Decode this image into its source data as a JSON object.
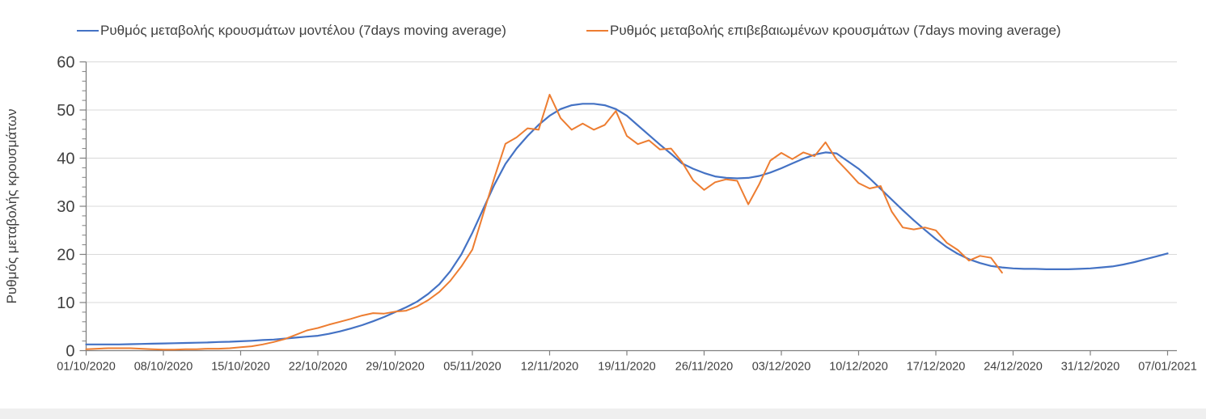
{
  "legend": {
    "series1_label": "Ρυθμός μεταβολής κρουσμάτων μοντέλου (7days moving average)",
    "series2_label": "Ρυθμός μεταβολής επιβεβαιωμένων κρουσμάτων (7days moving average)"
  },
  "y_axis": {
    "title": "Ρυθμός μεταβολής κρουσμάτων",
    "tick_values": [
      0,
      10,
      20,
      30,
      40,
      50,
      60
    ],
    "minor_tick_step": 2
  },
  "x_axis": {
    "tick_labels": [
      "01/10/2020",
      "08/10/2020",
      "15/10/2020",
      "22/10/2020",
      "29/10/2020",
      "05/11/2020",
      "12/11/2020",
      "19/11/2020",
      "26/11/2020",
      "03/12/2020",
      "10/12/2020",
      "17/12/2020",
      "24/12/2020",
      "31/12/2020",
      "07/01/2021"
    ],
    "tick_days": [
      0,
      7,
      14,
      21,
      28,
      35,
      42,
      49,
      56,
      63,
      70,
      77,
      84,
      91,
      98
    ]
  },
  "colors": {
    "model_line": "#4472C4",
    "confirmed_line": "#ED7D31",
    "gridline": "#D9D9D9",
    "axis": "#808080",
    "text": "#404040"
  },
  "chart_data": {
    "type": "line",
    "title": "",
    "ylabel": "Ρυθμός μεταβολής κρουσμάτων",
    "ylim": [
      0,
      60
    ],
    "grid": "horizontal",
    "legend_position": "top",
    "x_unit": "days since 01/10/2020 (weekly ticks)",
    "x_tick_days": [
      0,
      7,
      14,
      21,
      28,
      35,
      42,
      49,
      56,
      63,
      70,
      77,
      84,
      91,
      98
    ],
    "x_tick_labels": [
      "01/10/2020",
      "08/10/2020",
      "15/10/2020",
      "22/10/2020",
      "29/10/2020",
      "05/11/2020",
      "12/11/2020",
      "19/11/2020",
      "26/11/2020",
      "03/12/2020",
      "10/12/2020",
      "17/12/2020",
      "24/12/2020",
      "31/12/2020",
      "07/01/2021"
    ],
    "series": [
      {
        "name": "Ρυθμός μεταβολής κρουσμάτων μοντέλου (7days moving average)",
        "color": "#4472C4",
        "start_day": 0,
        "values": [
          1.3,
          1.3,
          1.3,
          1.3,
          1.35,
          1.4,
          1.45,
          1.5,
          1.55,
          1.6,
          1.65,
          1.7,
          1.8,
          1.85,
          1.95,
          2.05,
          2.2,
          2.3,
          2.5,
          2.7,
          2.9,
          3.1,
          3.5,
          4.0,
          4.6,
          5.3,
          6.1,
          7.0,
          8.0,
          9.0,
          10.2,
          11.8,
          13.8,
          16.5,
          20.0,
          24.5,
          29.5,
          34.5,
          38.8,
          42.0,
          44.6,
          46.9,
          48.8,
          50.2,
          51.0,
          51.3,
          51.3,
          51.0,
          50.2,
          48.8,
          46.8,
          44.8,
          42.8,
          40.9,
          38.9,
          37.8,
          36.9,
          36.2,
          35.9,
          35.8,
          35.9,
          36.3,
          37.0,
          37.9,
          38.9,
          39.9,
          40.7,
          41.2,
          41.0,
          39.4,
          37.8,
          35.8,
          33.6,
          31.4,
          29.2,
          27.1,
          25.1,
          23.2,
          21.5,
          20.1,
          19.0,
          18.2,
          17.6,
          17.3,
          17.1,
          17.0,
          17.0,
          16.9,
          16.9,
          16.9,
          17.0,
          17.1,
          17.3,
          17.5,
          17.9,
          18.4,
          19.0,
          19.6,
          20.2
        ]
      },
      {
        "name": "Ρυθμός μεταβολής επιβεβαιωμένων κρουσμάτων (7days moving average)",
        "color": "#ED7D31",
        "start_day": 0,
        "values": [
          0.3,
          0.4,
          0.5,
          0.5,
          0.5,
          0.4,
          0.3,
          0.2,
          0.2,
          0.3,
          0.3,
          0.4,
          0.4,
          0.5,
          0.7,
          0.9,
          1.3,
          1.8,
          2.4,
          3.3,
          4.2,
          4.7,
          5.4,
          6.0,
          6.6,
          7.3,
          7.8,
          7.7,
          8.1,
          8.3,
          9.2,
          10.5,
          12.2,
          14.5,
          17.5,
          21.0,
          28.5,
          36.0,
          43.0,
          44.3,
          46.2,
          45.9,
          53.2,
          48.3,
          45.9,
          47.2,
          45.9,
          46.9,
          49.8,
          44.6,
          42.9,
          43.7,
          41.8,
          42.0,
          39.2,
          35.4,
          33.4,
          35.0,
          35.6,
          35.3,
          30.4,
          34.6,
          39.5,
          41.1,
          39.8,
          41.2,
          40.4,
          43.3,
          39.7,
          37.3,
          34.8,
          33.7,
          34.2,
          28.9,
          25.6,
          25.2,
          25.6,
          25.0,
          22.4,
          20.9,
          18.7,
          19.7,
          19.3,
          16.2
        ]
      }
    ]
  }
}
